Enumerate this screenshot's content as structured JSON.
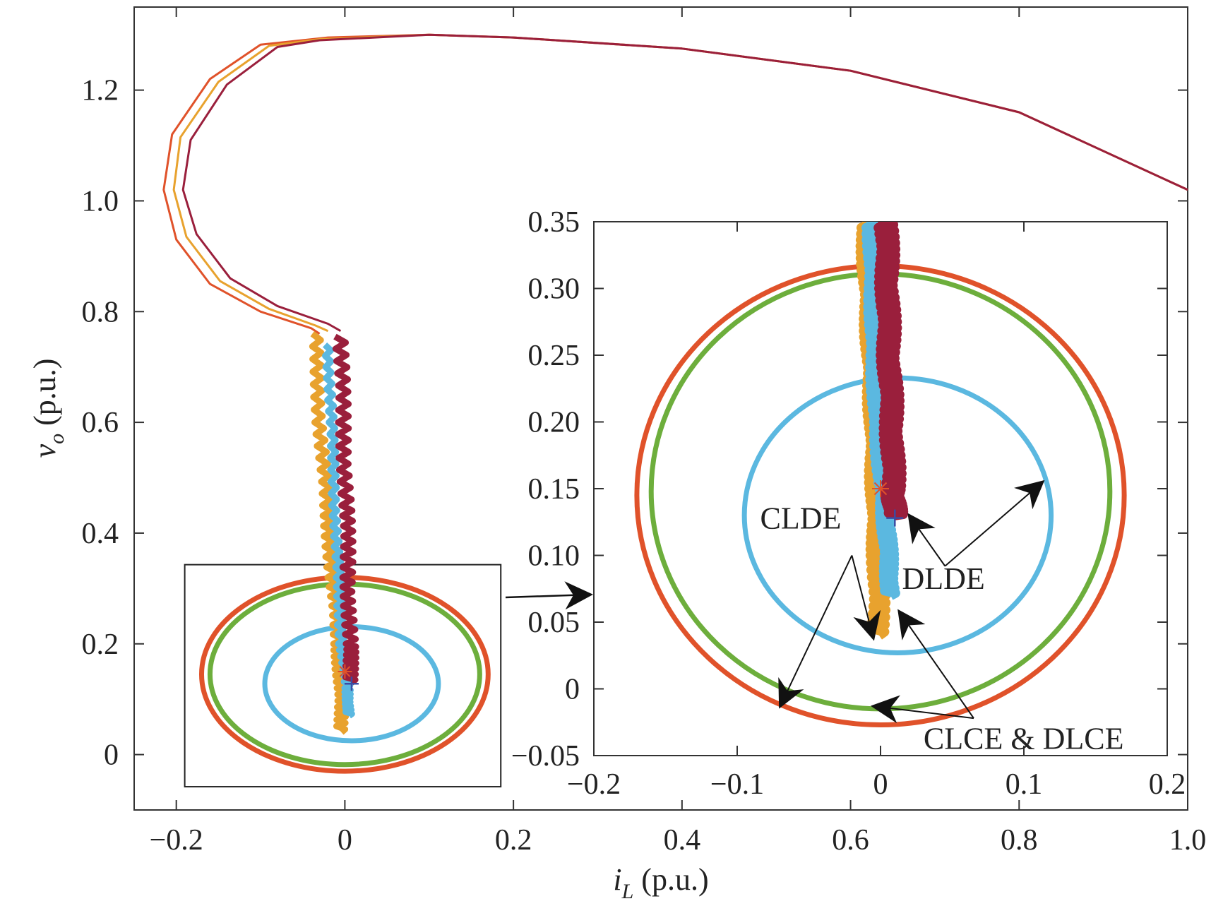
{
  "chart_data": [
    {
      "id": "main",
      "type": "line",
      "title": "",
      "xlabel_main": "i",
      "xlabel_sub": "L",
      "xlabel_unit": " (p.u.)",
      "ylabel_main": "v",
      "ylabel_sub": "o",
      "ylabel_unit": " (p.u.)",
      "xlim": [
        -0.25,
        1.0
      ],
      "ylim": [
        -0.1,
        1.35
      ],
      "xticks": [
        -0.2,
        0,
        0.2,
        0.4,
        0.6,
        0.8,
        1.0
      ],
      "xtick_labels": [
        "−0.2",
        "0",
        "0.2",
        "0.4",
        "0.6",
        "0.8",
        "1.0"
      ],
      "yticks": [
        0,
        0.2,
        0.4,
        0.6,
        0.8,
        1.0,
        1.2
      ],
      "ytick_labels": [
        "0",
        "0.2",
        "0.4",
        "0.6",
        "0.8",
        "1.0",
        "1.2"
      ],
      "grid": false,
      "trajectories": [
        {
          "color": "#E0522A",
          "points": [
            [
              1.0,
              1.02
            ],
            [
              0.8,
              1.16
            ],
            [
              0.6,
              1.235
            ],
            [
              0.4,
              1.275
            ],
            [
              0.2,
              1.295
            ],
            [
              0.1,
              1.3
            ],
            [
              -0.02,
              1.295
            ],
            [
              -0.1,
              1.282
            ],
            [
              -0.16,
              1.22
            ],
            [
              -0.205,
              1.12
            ],
            [
              -0.215,
              1.02
            ],
            [
              -0.2,
              0.93
            ],
            [
              -0.16,
              0.85
            ],
            [
              -0.1,
              0.8
            ],
            [
              -0.04,
              0.77
            ],
            [
              -0.03,
              0.76
            ]
          ]
        },
        {
          "color": "#E8A22E",
          "points": [
            [
              1.0,
              1.02
            ],
            [
              0.8,
              1.16
            ],
            [
              0.6,
              1.235
            ],
            [
              0.4,
              1.275
            ],
            [
              0.2,
              1.295
            ],
            [
              0.1,
              1.3
            ],
            [
              -0.03,
              1.292
            ],
            [
              -0.09,
              1.28
            ],
            [
              -0.15,
              1.215
            ],
            [
              -0.195,
              1.115
            ],
            [
              -0.203,
              1.02
            ],
            [
              -0.188,
              0.935
            ],
            [
              -0.148,
              0.855
            ],
            [
              -0.09,
              0.805
            ],
            [
              -0.035,
              0.775
            ],
            [
              -0.02,
              0.765
            ]
          ]
        },
        {
          "color": "#9A1F3C",
          "points": [
            [
              1.0,
              1.02
            ],
            [
              0.8,
              1.16
            ],
            [
              0.6,
              1.235
            ],
            [
              0.4,
              1.275
            ],
            [
              0.2,
              1.295
            ],
            [
              0.1,
              1.3
            ],
            [
              -0.03,
              1.29
            ],
            [
              -0.08,
              1.278
            ],
            [
              -0.14,
              1.21
            ],
            [
              -0.183,
              1.11
            ],
            [
              -0.192,
              1.02
            ],
            [
              -0.176,
              0.94
            ],
            [
              -0.136,
              0.86
            ],
            [
              -0.08,
              0.81
            ],
            [
              -0.02,
              0.778
            ],
            [
              -0.005,
              0.765
            ]
          ]
        }
      ],
      "bands": [
        {
          "color": "#E8A22E",
          "points": [
            [
              -0.035,
              0.76
            ],
            [
              -0.03,
              0.6
            ],
            [
              -0.022,
              0.45
            ],
            [
              -0.015,
              0.32
            ],
            [
              -0.008,
              0.2
            ],
            [
              -0.005,
              0.12
            ],
            [
              -0.004,
              0.04
            ]
          ],
          "amp": 0.006
        },
        {
          "color": "#5BB8E0",
          "points": [
            [
              -0.02,
              0.74
            ],
            [
              -0.016,
              0.6
            ],
            [
              -0.012,
              0.45
            ],
            [
              -0.008,
              0.32
            ],
            [
              -0.004,
              0.2
            ],
            [
              0.003,
              0.12
            ],
            [
              0.005,
              0.07
            ]
          ],
          "amp": 0.004
        },
        {
          "color": "#9A1F3C",
          "points": [
            [
              -0.005,
              0.755
            ],
            [
              -0.002,
              0.6
            ],
            [
              0.002,
              0.45
            ],
            [
              0.004,
              0.32
            ],
            [
              0.006,
              0.2
            ],
            [
              0.008,
              0.13
            ]
          ],
          "amp": 0.007
        }
      ],
      "ellipses": [
        {
          "color": "#E0522A",
          "cx": 0.0,
          "cy": 0.145,
          "rx": 0.17,
          "ry": 0.175
        },
        {
          "color": "#6DAE3C",
          "cx": 0.0,
          "cy": 0.145,
          "rx": 0.16,
          "ry": 0.163
        },
        {
          "color": "#5BB8E0",
          "cx": 0.008,
          "cy": 0.128,
          "rx": 0.103,
          "ry": 0.103
        }
      ],
      "markers": [
        {
          "shape": "star",
          "color": "#E0522A",
          "x": 0.0,
          "y": 0.15
        },
        {
          "shape": "plus",
          "color": "#3B4BA3",
          "x": 0.008,
          "y": 0.128
        }
      ],
      "zoom_box": {
        "x": [
          -0.19,
          0.185
        ],
        "y": [
          -0.058,
          0.343
        ]
      }
    },
    {
      "id": "inset",
      "type": "line",
      "title": "",
      "xlim": [
        -0.2,
        0.2
      ],
      "ylim": [
        -0.05,
        0.35
      ],
      "xticks": [
        -0.2,
        -0.1,
        0,
        0.1,
        0.2
      ],
      "xtick_labels": [
        "−0.2",
        "−0.1",
        "0",
        "0.1",
        "0.2"
      ],
      "yticks": [
        -0.05,
        0,
        0.05,
        0.1,
        0.15,
        0.2,
        0.25,
        0.3,
        0.35
      ],
      "ytick_labels": [
        "−0.05",
        "0",
        "0.05",
        "0.10",
        "0.15",
        "0.20",
        "0.25",
        "0.30",
        "0.35"
      ],
      "grid": false,
      "bands": [
        {
          "color": "#E8A22E",
          "points": [
            [
              -0.01,
              0.35
            ],
            [
              -0.008,
              0.3
            ],
            [
              -0.006,
              0.25
            ],
            [
              -0.004,
              0.2
            ],
            [
              -0.003,
              0.15
            ],
            [
              -0.002,
              0.1
            ],
            [
              -0.001,
              0.04
            ]
          ],
          "amp": 0.005
        },
        {
          "color": "#5BB8E0",
          "points": [
            [
              -0.006,
              0.35
            ],
            [
              -0.005,
              0.3
            ],
            [
              -0.004,
              0.25
            ],
            [
              -0.002,
              0.2
            ],
            [
              0.002,
              0.15
            ],
            [
              0.005,
              0.11
            ],
            [
              0.007,
              0.07
            ]
          ],
          "amp": 0.004
        },
        {
          "color": "#9A1F3C",
          "points": [
            [
              0.004,
              0.35
            ],
            [
              0.005,
              0.3
            ],
            [
              0.006,
              0.25
            ],
            [
              0.008,
              0.2
            ],
            [
              0.009,
              0.15
            ],
            [
              0.01,
              0.13
            ]
          ],
          "amp": 0.006
        }
      ],
      "ellipses": [
        {
          "color": "#E0522A",
          "cx": 0.0,
          "cy": 0.145,
          "rx": 0.17,
          "ry": 0.172
        },
        {
          "color": "#6DAE3C",
          "cx": 0.0,
          "cy": 0.148,
          "rx": 0.16,
          "ry": 0.163
        },
        {
          "color": "#5BB8E0",
          "cx": 0.012,
          "cy": 0.13,
          "rx": 0.107,
          "ry": 0.103
        }
      ],
      "markers": [
        {
          "shape": "star",
          "color": "#E0522A",
          "x": 0.0,
          "y": 0.15
        },
        {
          "shape": "plus",
          "color": "#3B4BA3",
          "x": 0.01,
          "y": 0.128
        }
      ],
      "annotations": [
        {
          "text": "CLDE",
          "x": -0.084,
          "y": 0.12,
          "anchor": "start",
          "arrows": [
            [
              -0.02,
              0.1,
              -0.07,
              -0.013
            ],
            [
              -0.02,
              0.1,
              -0.005,
              0.038
            ]
          ]
        },
        {
          "text": "DLDE",
          "x": 0.015,
          "y": 0.075,
          "anchor": "start",
          "arrows": [
            [
              0.045,
              0.092,
              0.113,
              0.155
            ],
            [
              0.045,
              0.092,
              0.02,
              0.13
            ]
          ]
        },
        {
          "text": "CLCE & DLCE",
          "x": 0.03,
          "y": -0.045,
          "anchor": "start",
          "arrows": [
            [
              0.065,
              -0.022,
              0.013,
              0.058
            ],
            [
              0.065,
              -0.022,
              -0.005,
              -0.013
            ]
          ]
        }
      ]
    }
  ]
}
